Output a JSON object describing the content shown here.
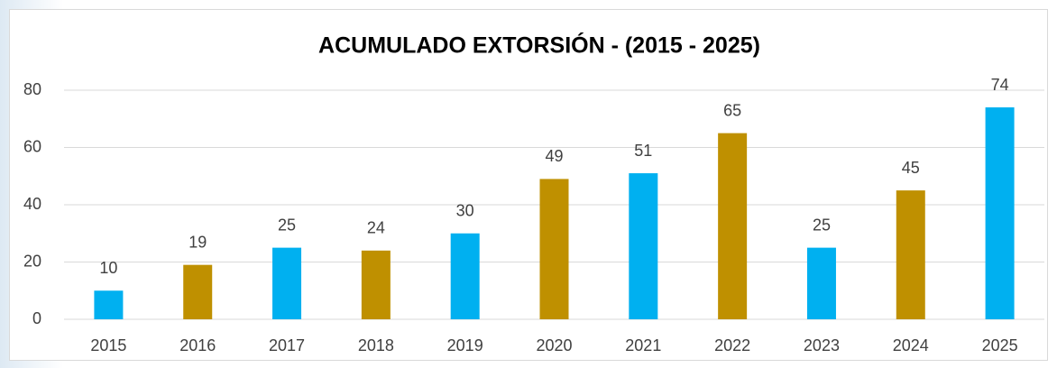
{
  "chart_data": {
    "type": "bar",
    "title": "ACUMULADO EXTORSIÓN - (2015 - 2025)",
    "categories": [
      "2015",
      "2016",
      "2017",
      "2018",
      "2019",
      "2020",
      "2021",
      "2022",
      "2023",
      "2024",
      "2025"
    ],
    "values": [
      10,
      19,
      25,
      24,
      30,
      49,
      51,
      65,
      25,
      45,
      74
    ],
    "colors": [
      "#00b0f0",
      "#bf9000",
      "#00b0f0",
      "#bf9000",
      "#00b0f0",
      "#bf9000",
      "#00b0f0",
      "#bf9000",
      "#00b0f0",
      "#bf9000",
      "#00b0f0"
    ],
    "ylim": [
      0,
      80
    ],
    "yticks": [
      0,
      20,
      40,
      60,
      80
    ],
    "grid": true
  }
}
